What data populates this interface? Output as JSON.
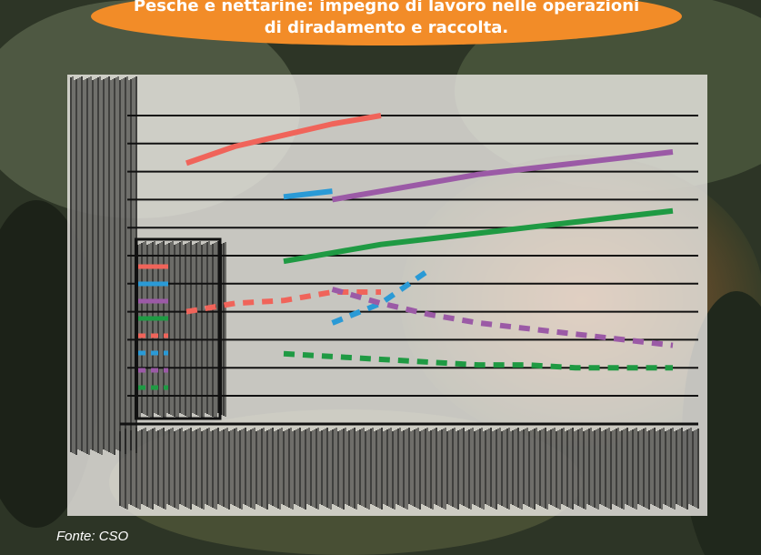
{
  "title_line1": "Pesche e nettarine: impegno di lavoro nelle operazioni",
  "title_line2": "di diradamento e raccolta.",
  "source": "Fonte: CSO",
  "colors": {
    "banner": "#f28c28",
    "panel": "#f2f0ec",
    "gridline": "#111111",
    "illegible_hatch": "#111111"
  },
  "chart_data": {
    "type": "line",
    "title": "Pesche e nettarine: impegno di lavoro nelle operazioni di diradamento e raccolta.",
    "note": "Axis tick labels, legend labels and year labels are illegible (obscured) in the image; values estimated in relative units (gridline index 0-10).",
    "x": [
      0,
      1,
      2,
      3,
      4,
      5,
      6,
      7,
      8,
      9,
      10
    ],
    "ylim": [
      0,
      10.5
    ],
    "grid": true,
    "legend": "left-middle",
    "series": [
      {
        "style": "solid",
        "color": "#f0645a",
        "values": [
          8.3,
          8.9,
          9.3,
          9.7,
          10.0,
          null,
          null,
          null,
          null,
          null,
          null
        ]
      },
      {
        "style": "solid",
        "color": "#2a9ad6",
        "values": [
          null,
          null,
          7.1,
          7.3,
          null,
          null,
          null,
          null,
          null,
          null,
          null
        ]
      },
      {
        "style": "solid",
        "color": "#9b5aa6",
        "values": [
          null,
          null,
          null,
          7.0,
          7.3,
          7.6,
          7.9,
          8.1,
          8.3,
          8.5,
          8.7
        ]
      },
      {
        "style": "solid",
        "color": "#1f9a43",
        "values": [
          null,
          null,
          4.8,
          5.1,
          5.4,
          5.6,
          5.8,
          6.0,
          6.2,
          6.4,
          6.6
        ]
      },
      {
        "style": "dashed",
        "color": "#f0645a",
        "values": [
          3.0,
          3.3,
          3.4,
          3.7,
          3.7,
          null,
          null,
          null,
          null,
          null,
          null
        ]
      },
      {
        "style": "dashed",
        "color": "#2a9ad6",
        "values": [
          null,
          null,
          null,
          2.6,
          3.3,
          4.5,
          null,
          null,
          null,
          null,
          null
        ]
      },
      {
        "style": "dashed",
        "color": "#9b5aa6",
        "values": [
          null,
          null,
          null,
          3.8,
          3.3,
          2.9,
          2.6,
          2.4,
          2.2,
          2.0,
          1.8
        ]
      },
      {
        "style": "dashed",
        "color": "#1f9a43",
        "values": [
          null,
          null,
          1.5,
          1.4,
          1.3,
          1.2,
          1.1,
          1.1,
          1.0,
          1.0,
          1.0
        ]
      }
    ]
  }
}
